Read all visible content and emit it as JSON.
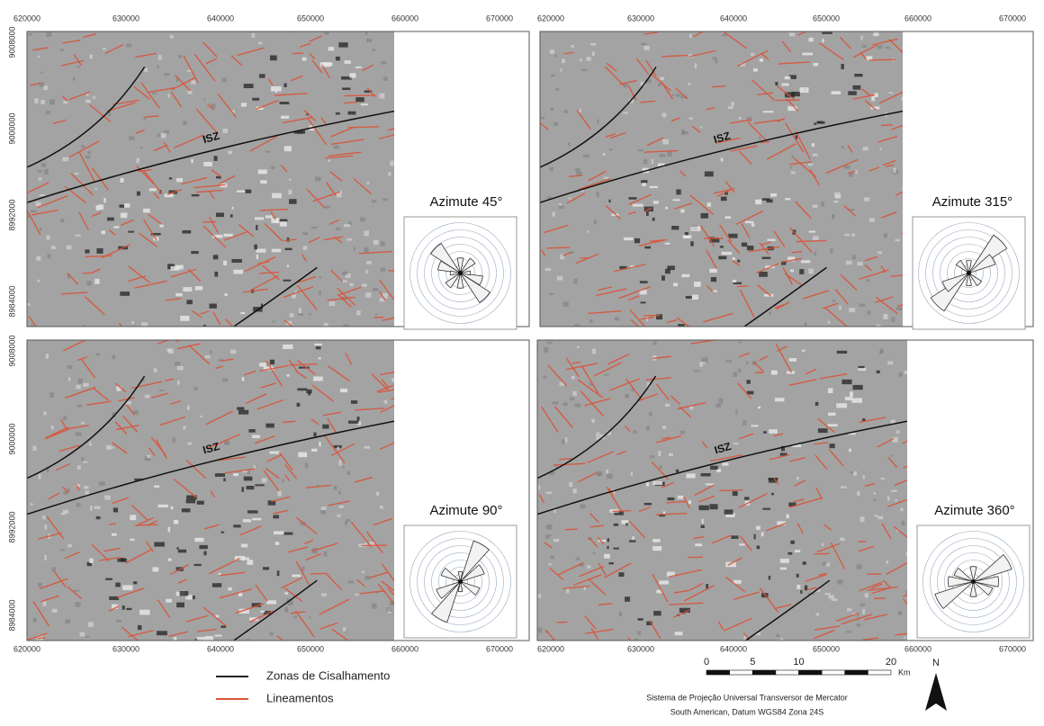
{
  "panels": [
    {
      "azimuth_label": "Azimute 45°",
      "zone_label": "ISZ"
    },
    {
      "azimuth_label": "Azimute 315°",
      "zone_label": "ISZ"
    },
    {
      "azimuth_label": "Azimute 90°",
      "zone_label": "ISZ"
    },
    {
      "azimuth_label": "Azimute 360°",
      "zone_label": "ISZ"
    }
  ],
  "x_labels": [
    620000,
    630000,
    640000,
    650000,
    660000,
    670000
  ],
  "y_labels": [
    9008000,
    9000000,
    8992000,
    8984000
  ],
  "legend": {
    "shear_zones": "Zonas de Cisalhamento",
    "lineaments": "Lineamentos"
  },
  "scale": {
    "ticks": [
      0,
      5,
      10,
      20
    ],
    "unit": "Km"
  },
  "north": "N",
  "projection": [
    "Sistema de Projeção Universal Transversor de Mercator",
    "South American, Datum WGS84 Zona 24S"
  ]
}
